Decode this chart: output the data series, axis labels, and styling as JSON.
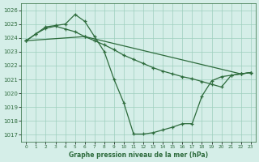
{
  "title": "Graphe pression niveau de la mer (hPa)",
  "bg_color": "#d5eee8",
  "grid_color": "#9ecfbe",
  "line_color": "#2d6b3c",
  "ylim": [
    1016.5,
    1026.5
  ],
  "xlim": [
    -0.5,
    23.5
  ],
  "yticks": [
    1017,
    1018,
    1019,
    1020,
    1021,
    1022,
    1023,
    1024,
    1025,
    1026
  ],
  "xticks": [
    0,
    1,
    2,
    3,
    4,
    5,
    6,
    7,
    8,
    9,
    10,
    11,
    12,
    13,
    14,
    15,
    16,
    17,
    18,
    19,
    20,
    21,
    22,
    23
  ],
  "curve1": [
    1023.8,
    1024.3,
    1024.8,
    1024.9,
    1025.0,
    1025.7,
    1025.2,
    1024.1,
    1023.0,
    1021.0,
    1019.3,
    1017.05,
    1017.05,
    1017.15,
    1017.35,
    1017.55,
    1017.8,
    1017.8,
    1019.8,
    1020.9,
    1021.2,
    1021.3,
    1021.4,
    1021.5
  ],
  "curve2_x": [
    0,
    1,
    2,
    3,
    4,
    5,
    6,
    22,
    23
  ],
  "curve2_y": [
    1023.8,
    1024.3,
    1024.7,
    1024.85,
    1024.65,
    1024.45,
    1024.1,
    1021.4,
    1021.5
  ],
  "curve3_x": [
    0,
    6,
    7,
    8,
    9,
    10,
    11,
    12,
    13,
    14,
    15,
    16,
    17,
    18,
    19,
    20,
    21,
    22,
    23
  ],
  "curve3_y": [
    1023.8,
    1024.1,
    1023.8,
    1023.5,
    1023.15,
    1022.75,
    1022.45,
    1022.15,
    1021.85,
    1021.6,
    1021.4,
    1021.2,
    1021.05,
    1020.85,
    1020.65,
    1020.45,
    1021.3,
    1021.4,
    1021.5
  ]
}
